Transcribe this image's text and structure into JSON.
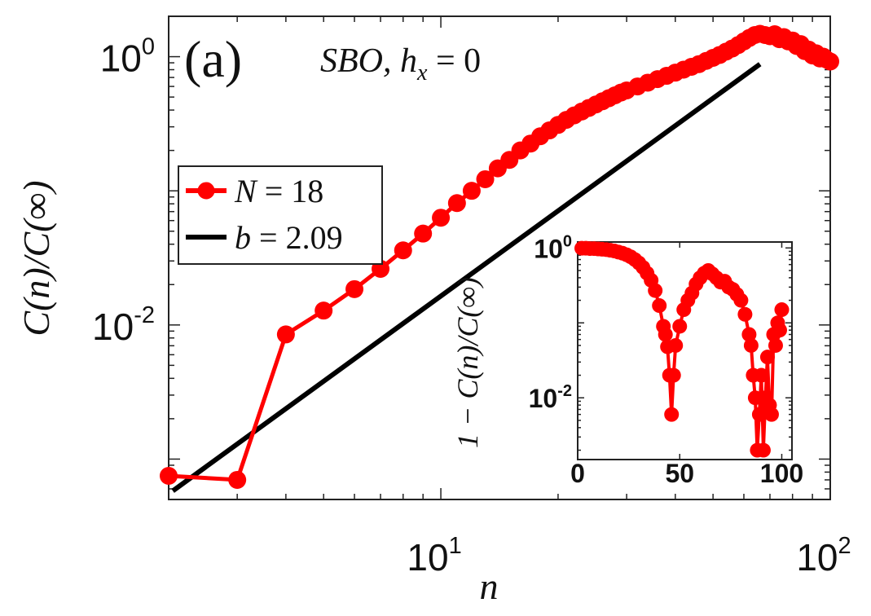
{
  "chart_data": [
    {
      "type": "line",
      "panel_label": "(a)",
      "title": "SBO, h_x = 0",
      "title_parts": {
        "pre": "SBO, h",
        "sub": "x",
        "post": " = 0"
      },
      "xlabel": "n",
      "ylabel": "C(n)/C(∞)",
      "xscale": "log",
      "yscale": "log",
      "xlim": [
        2,
        100
      ],
      "ylim": [
        0.0005,
        2.0
      ],
      "xticks": [
        {
          "value": 10,
          "base": "10",
          "exp": "1"
        },
        {
          "value": 100,
          "base": "10",
          "exp": "2"
        }
      ],
      "yticks": [
        {
          "value": 0.01,
          "base": "10",
          "exp": "-2"
        },
        {
          "value": 1,
          "base": "10",
          "exp": "0"
        }
      ],
      "legend": {
        "placement": "middle-left",
        "entries": [
          {
            "label": "N = 18",
            "lhs": "N",
            "rhs": "18",
            "color": "#ff0000",
            "marker": "circle"
          },
          {
            "label": "b = 2.09",
            "lhs": "b",
            "rhs": "2.09",
            "color": "#000000",
            "marker": "none"
          }
        ]
      },
      "series": [
        {
          "name": "N = 18",
          "color": "#ff0000",
          "marker": "circle",
          "x": [
            2,
            3,
            4,
            5,
            6,
            7,
            8,
            9,
            10,
            11,
            12,
            13,
            14,
            15,
            16,
            17,
            18,
            19,
            20,
            21,
            22,
            23,
            24,
            25,
            26,
            27,
            28,
            29,
            30,
            32,
            34,
            36,
            38,
            40,
            42,
            44,
            46,
            48,
            50,
            52,
            54,
            56,
            58,
            60,
            62,
            64,
            66,
            68,
            70,
            72,
            74,
            76,
            78,
            80,
            82,
            84,
            86,
            88,
            90,
            92,
            94,
            96,
            98,
            100
          ],
          "y": [
            0.00075,
            0.0007,
            0.0085,
            0.0128,
            0.0185,
            0.0262,
            0.036,
            0.048,
            0.063,
            0.081,
            0.1,
            0.122,
            0.147,
            0.17,
            0.2,
            0.225,
            0.255,
            0.282,
            0.31,
            0.338,
            0.365,
            0.39,
            0.415,
            0.44,
            0.465,
            0.49,
            0.515,
            0.54,
            0.56,
            0.6,
            0.64,
            0.68,
            0.72,
            0.76,
            0.8,
            0.84,
            0.88,
            0.93,
            0.98,
            1.03,
            1.09,
            1.15,
            1.22,
            1.3,
            1.38,
            1.45,
            1.48,
            1.45,
            1.42,
            1.47,
            1.35,
            1.4,
            1.3,
            1.32,
            1.2,
            1.24,
            1.1,
            1.13,
            1.02,
            1.06,
            0.97,
            1.0,
            0.95,
            0.92
          ]
        },
        {
          "name": "b = 2.09",
          "color": "#000000",
          "marker": "none",
          "x": [
            2.05,
            66
          ],
          "y": [
            0.00058,
            0.88
          ]
        }
      ]
    },
    {
      "type": "line",
      "role": "inset",
      "xlabel": "",
      "ylabel": "1 − C(n)/C(∞)",
      "xscale": "linear",
      "yscale": "log",
      "xlim": [
        0,
        105
      ],
      "ylim": [
        0.0015,
        1.2
      ],
      "xticks": [
        {
          "value": 0,
          "label": "0"
        },
        {
          "value": 50,
          "label": "50"
        },
        {
          "value": 100,
          "label": "100"
        }
      ],
      "yticks": [
        {
          "value": 0.01,
          "base": "10",
          "exp": "-2"
        },
        {
          "value": 1,
          "base": "10",
          "exp": "0"
        }
      ],
      "series": [
        {
          "name": "1 − C(n)/C(∞)",
          "color": "#ff0000",
          "marker": "circle",
          "x": [
            2,
            4,
            6,
            8,
            10,
            12,
            14,
            16,
            18,
            20,
            22,
            24,
            26,
            28,
            30,
            32,
            34,
            36,
            38,
            40,
            42,
            43,
            44,
            45,
            46,
            47,
            48,
            50,
            52,
            54,
            56,
            58,
            60,
            62,
            64,
            66,
            68,
            70,
            72,
            74,
            76,
            78,
            80,
            82,
            84,
            85,
            86,
            87,
            88,
            89,
            90,
            91,
            92,
            93,
            94,
            95,
            96,
            97,
            98,
            99,
            100
          ],
          "y": [
            0.99,
            0.99,
            0.98,
            0.98,
            0.97,
            0.96,
            0.95,
            0.93,
            0.91,
            0.88,
            0.85,
            0.81,
            0.76,
            0.7,
            0.63,
            0.55,
            0.46,
            0.37,
            0.27,
            0.17,
            0.09,
            0.07,
            0.048,
            0.02,
            0.006,
            0.02,
            0.05,
            0.09,
            0.15,
            0.2,
            0.25,
            0.33,
            0.4,
            0.46,
            0.5,
            0.45,
            0.4,
            0.35,
            0.36,
            0.3,
            0.28,
            0.24,
            0.2,
            0.13,
            0.07,
            0.05,
            0.02,
            0.01,
            0.002,
            0.006,
            0.02,
            0.002,
            0.01,
            0.035,
            0.008,
            0.006,
            0.07,
            0.05,
            0.1,
            0.08,
            0.15
          ]
        }
      ]
    }
  ]
}
